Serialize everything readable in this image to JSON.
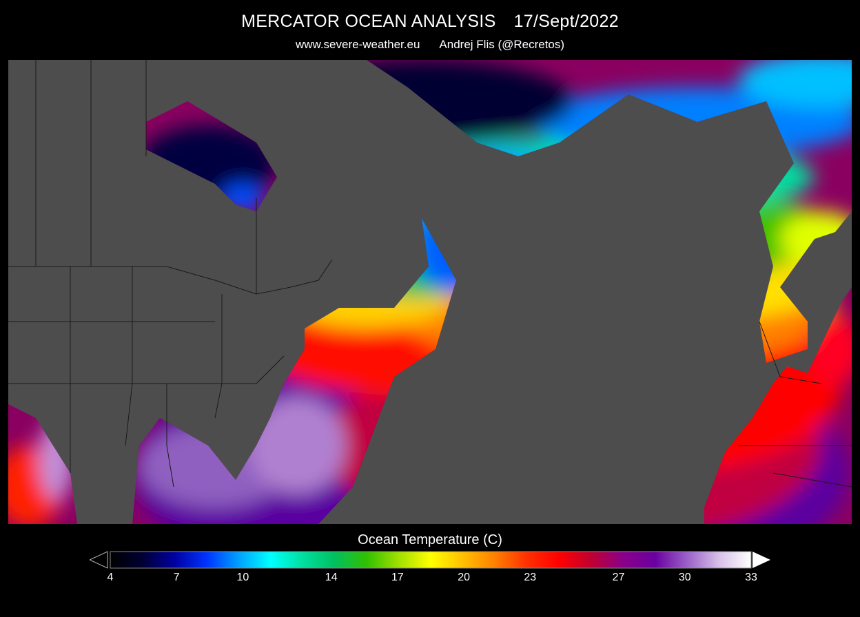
{
  "header": {
    "title_main": "MERCATOR OCEAN ANALYSIS",
    "title_date": "17/Sept/2022",
    "site": "www.severe-weather.eu",
    "author": "Andrej Flis (@Recretos)"
  },
  "legend": {
    "title": "Ocean Temperature (C)",
    "min": 4,
    "max": 33,
    "ticks": [
      "4",
      "7",
      "10",
      "14",
      "17",
      "20",
      "23",
      "27",
      "30",
      "33"
    ],
    "colors": [
      "#000000",
      "#000033",
      "#0000a0",
      "#0033ff",
      "#00a0ff",
      "#00ffff",
      "#00e0a0",
      "#00c060",
      "#30c000",
      "#a0e000",
      "#ffff00",
      "#ffc000",
      "#ff8000",
      "#ff3000",
      "#ff0000",
      "#c00030",
      "#8a008a",
      "#6a00a0",
      "#9a60c8",
      "#d8c0e8",
      "#ffffff"
    ]
  },
  "map": {
    "region": "North Atlantic",
    "land_color": "#4d4d4d",
    "border_color": "#1a1a1a"
  }
}
